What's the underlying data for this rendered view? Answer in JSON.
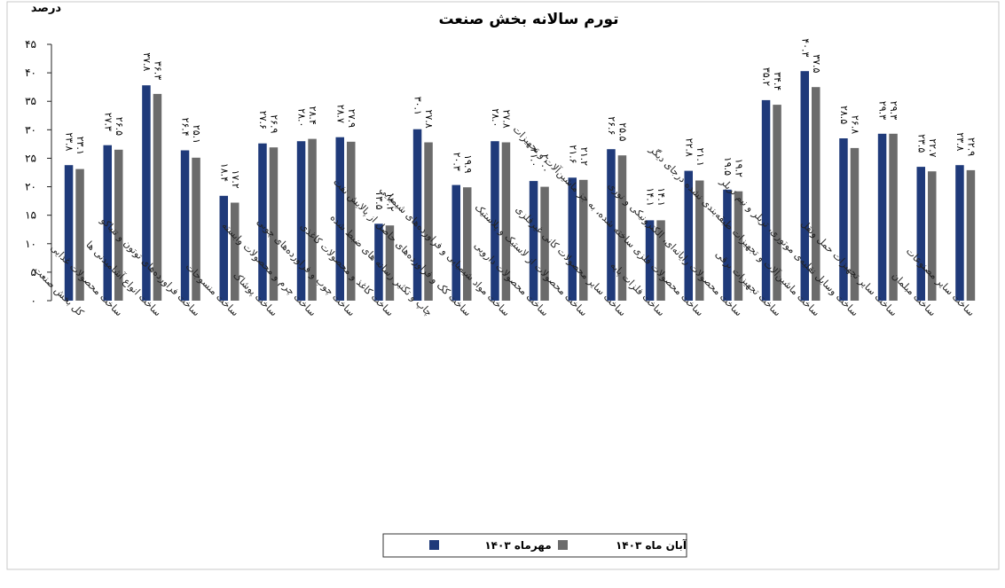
{
  "chart_data": {
    "type": "bar",
    "title": "تورم سالانه بخش صنعت",
    "ylabel": "درصد",
    "xlabel": "",
    "ylim": [
      0,
      45
    ],
    "yticks": [
      "۰",
      "۵",
      "۱۰",
      "۱۵",
      "۲۰",
      "۲۵",
      "۳۰",
      "۳۵",
      "۴۰",
      "۴۵"
    ],
    "grid": false,
    "legend_position": "bottom",
    "categories": [
      "کل بخش صنعت",
      "ساخت محصولات غذایی",
      "ساخت انواع آشامیدنی ها",
      "ساخت فراورده‌های توتون و تنباکو",
      "ساخت منسوجات",
      "ساخت پوشاک",
      "ساخت چرم و محصولات وابسته",
      "ساخت چوب و فراورده‌های چوبی",
      "ساخت کاغذ و محصولات کاغذی",
      "چاپ و تکثیر رسانه های ضبط شده",
      "ساخت کک و فراورده‌های حاصل از پالایش نفت",
      "ساخت مواد شیمیایی و فراورده‌های شیمیایی",
      "ساخت محصولات دارویی",
      "ساخت محصولات از لاستیک و پلاستیک",
      "ساخت سایر محصولات کانی غیرفلزی",
      "ساخت فلزات پایه",
      "ساخت محصولات فلزی ساخته شده، به جز ماشین‌آلات و تجهیزات",
      "ساخت محصولات رایانه‌ای، الکترونیکی و نوری",
      "ساخت تجهیزات برقی",
      "ساخت ماشین‌آلات و تجهیزات طبقه‌بندی نشده درجای دیگر",
      "ساخت وسایل نقلیه‌ی موتوری، تریلر و نیم تریلر",
      "ساخت سایر تجهیزات حمل ونقل",
      "ساخت مبلمان",
      "ساخت سایر مصنوعات"
    ],
    "series": [
      {
        "name": "مهرماه ۱۴۰۳",
        "color": "#1f3a7a",
        "values": [
          23.8,
          27.3,
          37.8,
          26.4,
          18.4,
          27.6,
          28.0,
          28.7,
          13.5,
          30.1,
          20.3,
          28.0,
          21.0,
          21.6,
          26.6,
          14.1,
          22.8,
          19.5,
          35.2,
          40.3,
          28.5,
          29.3,
          23.5,
          23.8
        ],
        "labels": [
          "۲۳.۸",
          "۲۷.۳",
          "۳۷.۸",
          "۲۶.۴",
          "۱۸.۴",
          "۲۷.۶",
          "۲۸.۰",
          "۲۸.۷",
          "۱۳.۵",
          "۳۰.۱",
          "۲۰.۳",
          "۲۸.۰",
          "۲۱.۰",
          "۲۱.۶",
          "۲۶.۶",
          "۱۴.۱",
          "۲۲.۸",
          "۱۹.۵",
          "۳۵.۲",
          "۴۰.۳",
          "۲۸.۵",
          "۲۹.۳",
          "۲۳.۵",
          "۲۳.۸"
        ]
      },
      {
        "name": "آبان ماه ۱۴۰۳",
        "color": "#6b6b6b",
        "values": [
          23.1,
          26.5,
          36.3,
          25.1,
          17.2,
          26.9,
          28.4,
          27.9,
          13.2,
          27.8,
          19.9,
          27.8,
          20.0,
          21.2,
          25.5,
          14.1,
          21.1,
          19.2,
          34.4,
          37.5,
          26.8,
          29.3,
          22.7,
          22.9
        ],
        "labels": [
          "۲۳.۱",
          "۲۶.۵",
          "۳۶.۳",
          "۲۵.۱",
          "۱۷.۲",
          "۲۶.۹",
          "۲۸.۴",
          "۲۷.۹",
          "۱۳.۲",
          "۲۷.۸",
          "۱۹.۹",
          "۲۷.۸",
          "۲۰.۰",
          "۲۱.۲",
          "۲۵.۵",
          "۱۴.۱",
          "۲۱.۱",
          "۱۹.۲",
          "۳۴.۴",
          "۳۷.۵",
          "۲۶.۸",
          "۲۹.۳",
          "۲۲.۷",
          "۲۲.۹"
        ]
      }
    ]
  }
}
